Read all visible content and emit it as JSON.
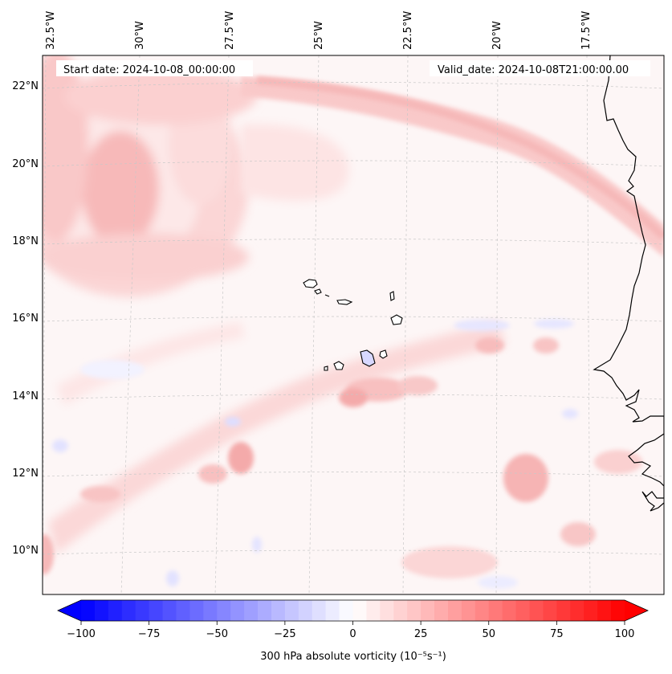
{
  "header": {
    "start_date": "Start date: 2024-10-08_00:00:00",
    "valid_date": "Valid_date: 2024-10-08T21:00:00.00"
  },
  "axes": {
    "lon_labels": [
      "32.5°W",
      "30°W",
      "27.5°W",
      "25°W",
      "22.5°W",
      "20°W",
      "17.5°W"
    ],
    "lat_labels": [
      "22°N",
      "20°N",
      "18°N",
      "16°N",
      "14°N",
      "12°N",
      "10°N"
    ]
  },
  "colorbar": {
    "min": -100,
    "max": 100,
    "tick_values": [
      -100,
      -75,
      -50,
      -25,
      0,
      25,
      50,
      75,
      100
    ],
    "tick_labels": [
      "−100",
      "−75",
      "−50",
      "−25",
      "0",
      "25",
      "50",
      "75",
      "100"
    ],
    "title": "300 hPa absolute vorticity (10⁻⁵s⁻¹)",
    "low_color": "#0000ff",
    "mid_color": "#ffffff",
    "high_color": "#ff0000"
  },
  "colors": {
    "weak_positive": "#fde8e8",
    "moderate_positive": "#fbd4d4",
    "strong_positive": "#f8bcbc",
    "weak_negative": "#eeeeff",
    "moderate_negative": "#d8d8ff",
    "coastline": "#000000",
    "gridline": "#c8c8c8"
  }
}
